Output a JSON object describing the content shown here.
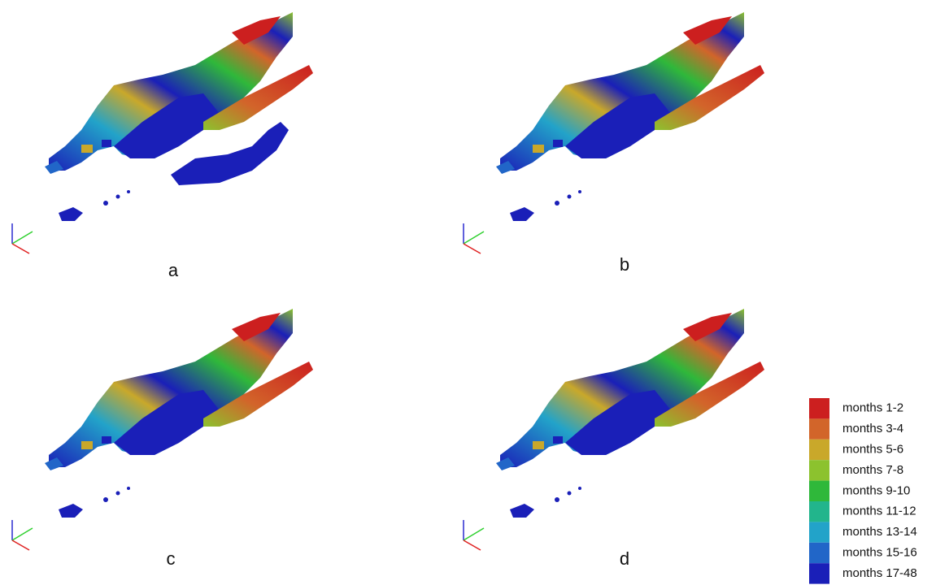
{
  "panels": [
    {
      "label": "a"
    },
    {
      "label": "b"
    },
    {
      "label": "c"
    },
    {
      "label": "d"
    }
  ],
  "legend": [
    {
      "label": "months 1-2",
      "color": "#cc1f1f"
    },
    {
      "label": "months 3-4",
      "color": "#d2652a"
    },
    {
      "label": "months 5-6",
      "color": "#c9a82a"
    },
    {
      "label": "months 7-8",
      "color": "#8cc22e"
    },
    {
      "label": "months 9-10",
      "color": "#2fb83a"
    },
    {
      "label": "months 11-12",
      "color": "#22b58c"
    },
    {
      "label": "months 13-14",
      "color": "#22a3c9"
    },
    {
      "label": "months 15-16",
      "color": "#2166c8"
    },
    {
      "label": "months 17-48",
      "color": "#1a1fb8"
    }
  ]
}
